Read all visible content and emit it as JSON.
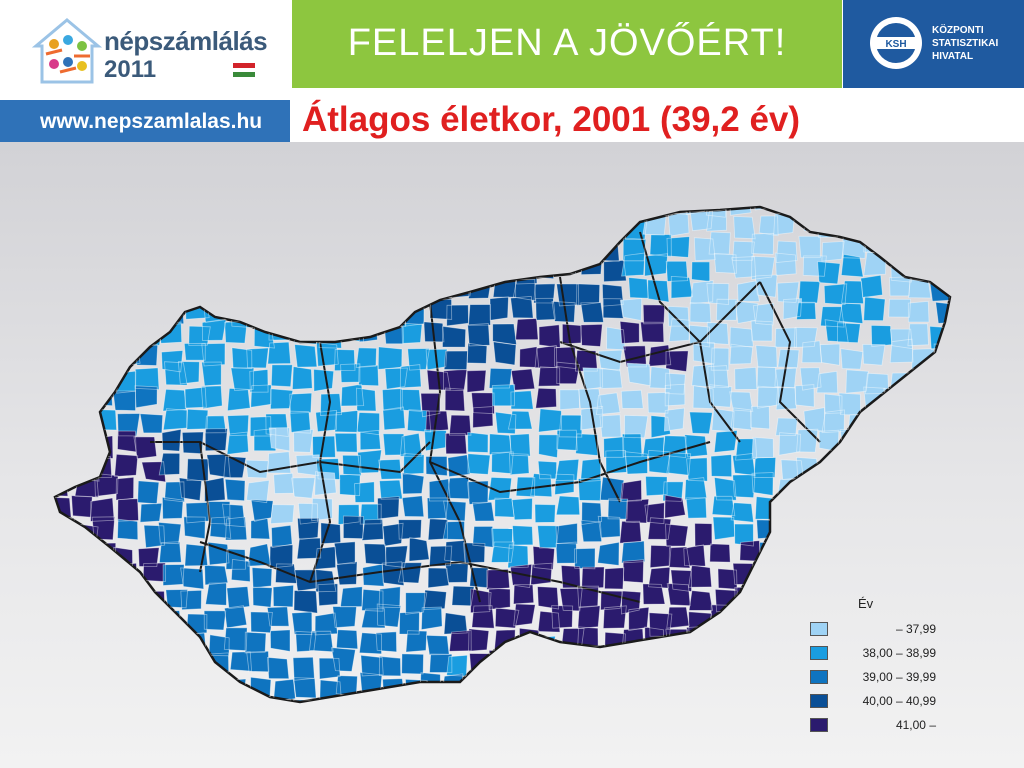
{
  "header": {
    "logo_line1": "népszámlálás",
    "logo_line2": "2011",
    "url": "www.nepszamlalas.hu",
    "slogan": "FELELJEN A JÖVŐÉRT!",
    "ksh_line1": "KÖZPONTI",
    "ksh_line2": "STATISZTIKAI",
    "ksh_line3": "HIVATAL",
    "ksh_emblem": "KSH"
  },
  "title": "Átlagos életkor, 2001 (39,2 év)",
  "legend": {
    "title": "Év",
    "items": [
      {
        "label": "– 37,99",
        "color": "#9fd3f5"
      },
      {
        "label": "38,00 – 38,99",
        "color": "#1a9de0"
      },
      {
        "label": "39,00 – 39,99",
        "color": "#0f74c0"
      },
      {
        "label": "40,00 – 40,99",
        "color": "#0a4f96"
      },
      {
        "label": "41,00 –",
        "color": "#2b1b6e"
      }
    ]
  },
  "colors": {
    "green_banner": "#8dc63f",
    "ksh_blue": "#1f5aa0",
    "url_blue": "#2f72b8",
    "title_red": "#e02020"
  }
}
